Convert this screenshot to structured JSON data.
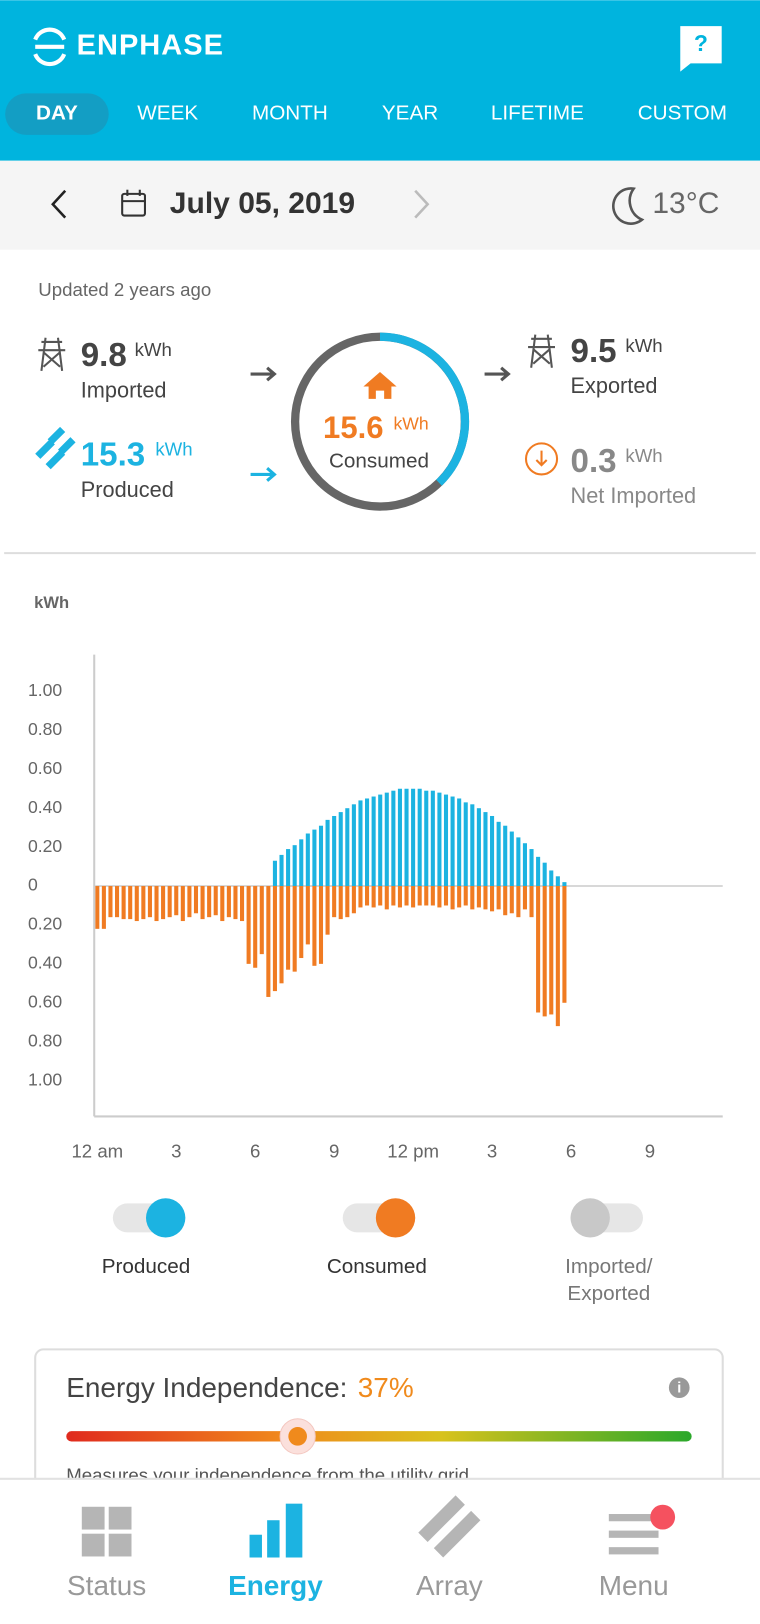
{
  "header": {
    "brand": "ENPHASE",
    "help": "?"
  },
  "tabs": [
    "DAY",
    "WEEK",
    "MONTH",
    "YEAR",
    "LIFETIME",
    "CUSTOM"
  ],
  "date_bar": {
    "date": "July 05, 2019",
    "temperature": "13°C"
  },
  "summary": {
    "updated": "Updated 2 years ago",
    "imported": {
      "value": 9.8,
      "unit": "kWh",
      "label": "Imported"
    },
    "produced": {
      "value": 15.3,
      "unit": "kWh",
      "label": "Produced"
    },
    "consumed": {
      "value": 15.6,
      "unit": "kWh",
      "label": "Consumed"
    },
    "exported": {
      "value": 9.5,
      "unit": "kWh",
      "label": "Exported"
    },
    "net": {
      "value": 0.3,
      "unit": "kWh",
      "label": "Net Imported"
    }
  },
  "chart_data": {
    "type": "bar",
    "y_label": "kWh",
    "x": [
      0,
      0.25,
      0.5,
      0.75,
      1,
      1.25,
      1.5,
      1.75,
      2,
      2.25,
      2.5,
      2.75,
      3,
      3.25,
      3.5,
      3.75,
      4,
      4.25,
      4.5,
      4.75,
      5,
      5.25,
      5.5,
      5.75,
      6,
      6.25,
      6.5,
      6.75,
      7,
      7.25,
      7.5,
      7.75,
      8,
      8.25,
      8.5,
      8.75,
      9,
      9.25,
      9.5,
      9.75,
      10,
      10.25,
      10.5,
      10.75,
      11,
      11.25,
      11.5,
      11.75,
      12,
      12.25,
      12.5,
      12.75,
      13,
      13.25,
      13.5,
      13.75,
      14,
      14.25,
      14.5,
      14.75,
      15,
      15.25,
      15.5,
      15.75,
      16,
      16.25,
      16.5,
      16.75,
      17,
      17.25,
      17.5,
      17.75
    ],
    "series": [
      {
        "name": "Produced",
        "color": "#1cb3e1",
        "values": [
          null,
          null,
          null,
          null,
          null,
          null,
          null,
          null,
          null,
          null,
          null,
          null,
          null,
          null,
          null,
          null,
          null,
          null,
          null,
          null,
          null,
          null,
          null,
          null,
          null,
          null,
          null,
          0.13,
          0.16,
          0.19,
          0.21,
          0.24,
          0.27,
          0.29,
          0.31,
          0.34,
          0.36,
          0.38,
          0.4,
          0.42,
          0.44,
          0.45,
          0.46,
          0.47,
          0.48,
          0.49,
          0.5,
          0.5,
          0.5,
          0.5,
          0.49,
          0.49,
          0.48,
          0.47,
          0.46,
          0.45,
          0.43,
          0.42,
          0.4,
          0.38,
          0.36,
          0.33,
          0.31,
          0.28,
          0.25,
          0.22,
          0.19,
          0.15,
          0.12,
          0.08,
          0.05,
          0.02
        ]
      },
      {
        "name": "Consumed",
        "color": "#f07b22",
        "values": [
          -0.22,
          -0.22,
          -0.16,
          -0.16,
          -0.17,
          -0.17,
          -0.18,
          -0.17,
          -0.16,
          -0.18,
          -0.17,
          -0.16,
          -0.15,
          -0.18,
          -0.16,
          -0.14,
          -0.17,
          -0.16,
          -0.15,
          -0.18,
          -0.16,
          -0.17,
          -0.18,
          -0.4,
          -0.42,
          -0.35,
          -0.57,
          -0.54,
          -0.5,
          -0.43,
          -0.44,
          -0.37,
          -0.3,
          -0.41,
          -0.4,
          -0.25,
          -0.16,
          -0.17,
          -0.16,
          -0.14,
          -0.11,
          -0.1,
          -0.11,
          -0.1,
          -0.12,
          -0.1,
          -0.11,
          -0.1,
          -0.11,
          -0.1,
          -0.1,
          -0.1,
          -0.11,
          -0.1,
          -0.12,
          -0.11,
          -0.1,
          -0.12,
          -0.11,
          -0.12,
          -0.13,
          -0.12,
          -0.15,
          -0.14,
          -0.16,
          -0.12,
          -0.16,
          -0.65,
          -0.67,
          -0.66,
          -0.72,
          -0.6
        ]
      }
    ],
    "xlim": [
      0,
      24
    ],
    "xticks": [
      {
        "value": 0,
        "label": "12 am"
      },
      3,
      6,
      9,
      {
        "value": 12,
        "label": "12 pm"
      },
      {
        "value": 15,
        "label": "3"
      },
      {
        "value": 18,
        "label": "6"
      },
      {
        "value": 21,
        "label": "9"
      }
    ],
    "ylim": [
      -1.2,
      1.2
    ],
    "yticks": [
      {
        "value": 1,
        "label": "1.00"
      },
      {
        "value": 0.8,
        "label": "0.80"
      },
      {
        "value": 0.6,
        "label": "0.60"
      },
      {
        "value": 0.4,
        "label": "0.40"
      },
      {
        "value": 0.2,
        "label": "0.20"
      },
      0,
      {
        "value": -0.2,
        "label": "0.20"
      },
      {
        "value": -0.4,
        "label": "0.40"
      },
      {
        "value": -0.6,
        "label": "0.60"
      },
      {
        "value": -0.8,
        "label": "0.80"
      },
      {
        "value": -1,
        "label": "1.00"
      }
    ]
  },
  "toggles": {
    "imported_exported": [
      "Imported/",
      "Exported"
    ]
  },
  "independence": {
    "label": "Energy Independence:",
    "value": 37,
    "value_label": "37%",
    "description": "Measures your independence from the utility grid"
  },
  "nav": [
    "Status",
    "Energy",
    "Array",
    "Menu"
  ]
}
